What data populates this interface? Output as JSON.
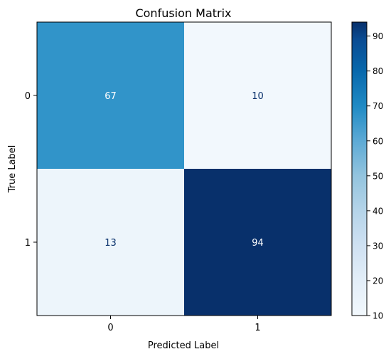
{
  "chart_data": {
    "type": "heatmap",
    "title": "Confusion Matrix",
    "xlabel": "Predicted Label",
    "ylabel": "True Label",
    "x_categories": [
      "0",
      "1"
    ],
    "y_categories": [
      "0",
      "1"
    ],
    "values": [
      [
        67,
        10
      ],
      [
        13,
        94
      ]
    ],
    "colormap": "Blues",
    "colorbar": {
      "min": 10,
      "max": 94,
      "ticks": [
        10,
        20,
        30,
        40,
        50,
        60,
        70,
        80,
        90
      ]
    },
    "grid": false
  }
}
